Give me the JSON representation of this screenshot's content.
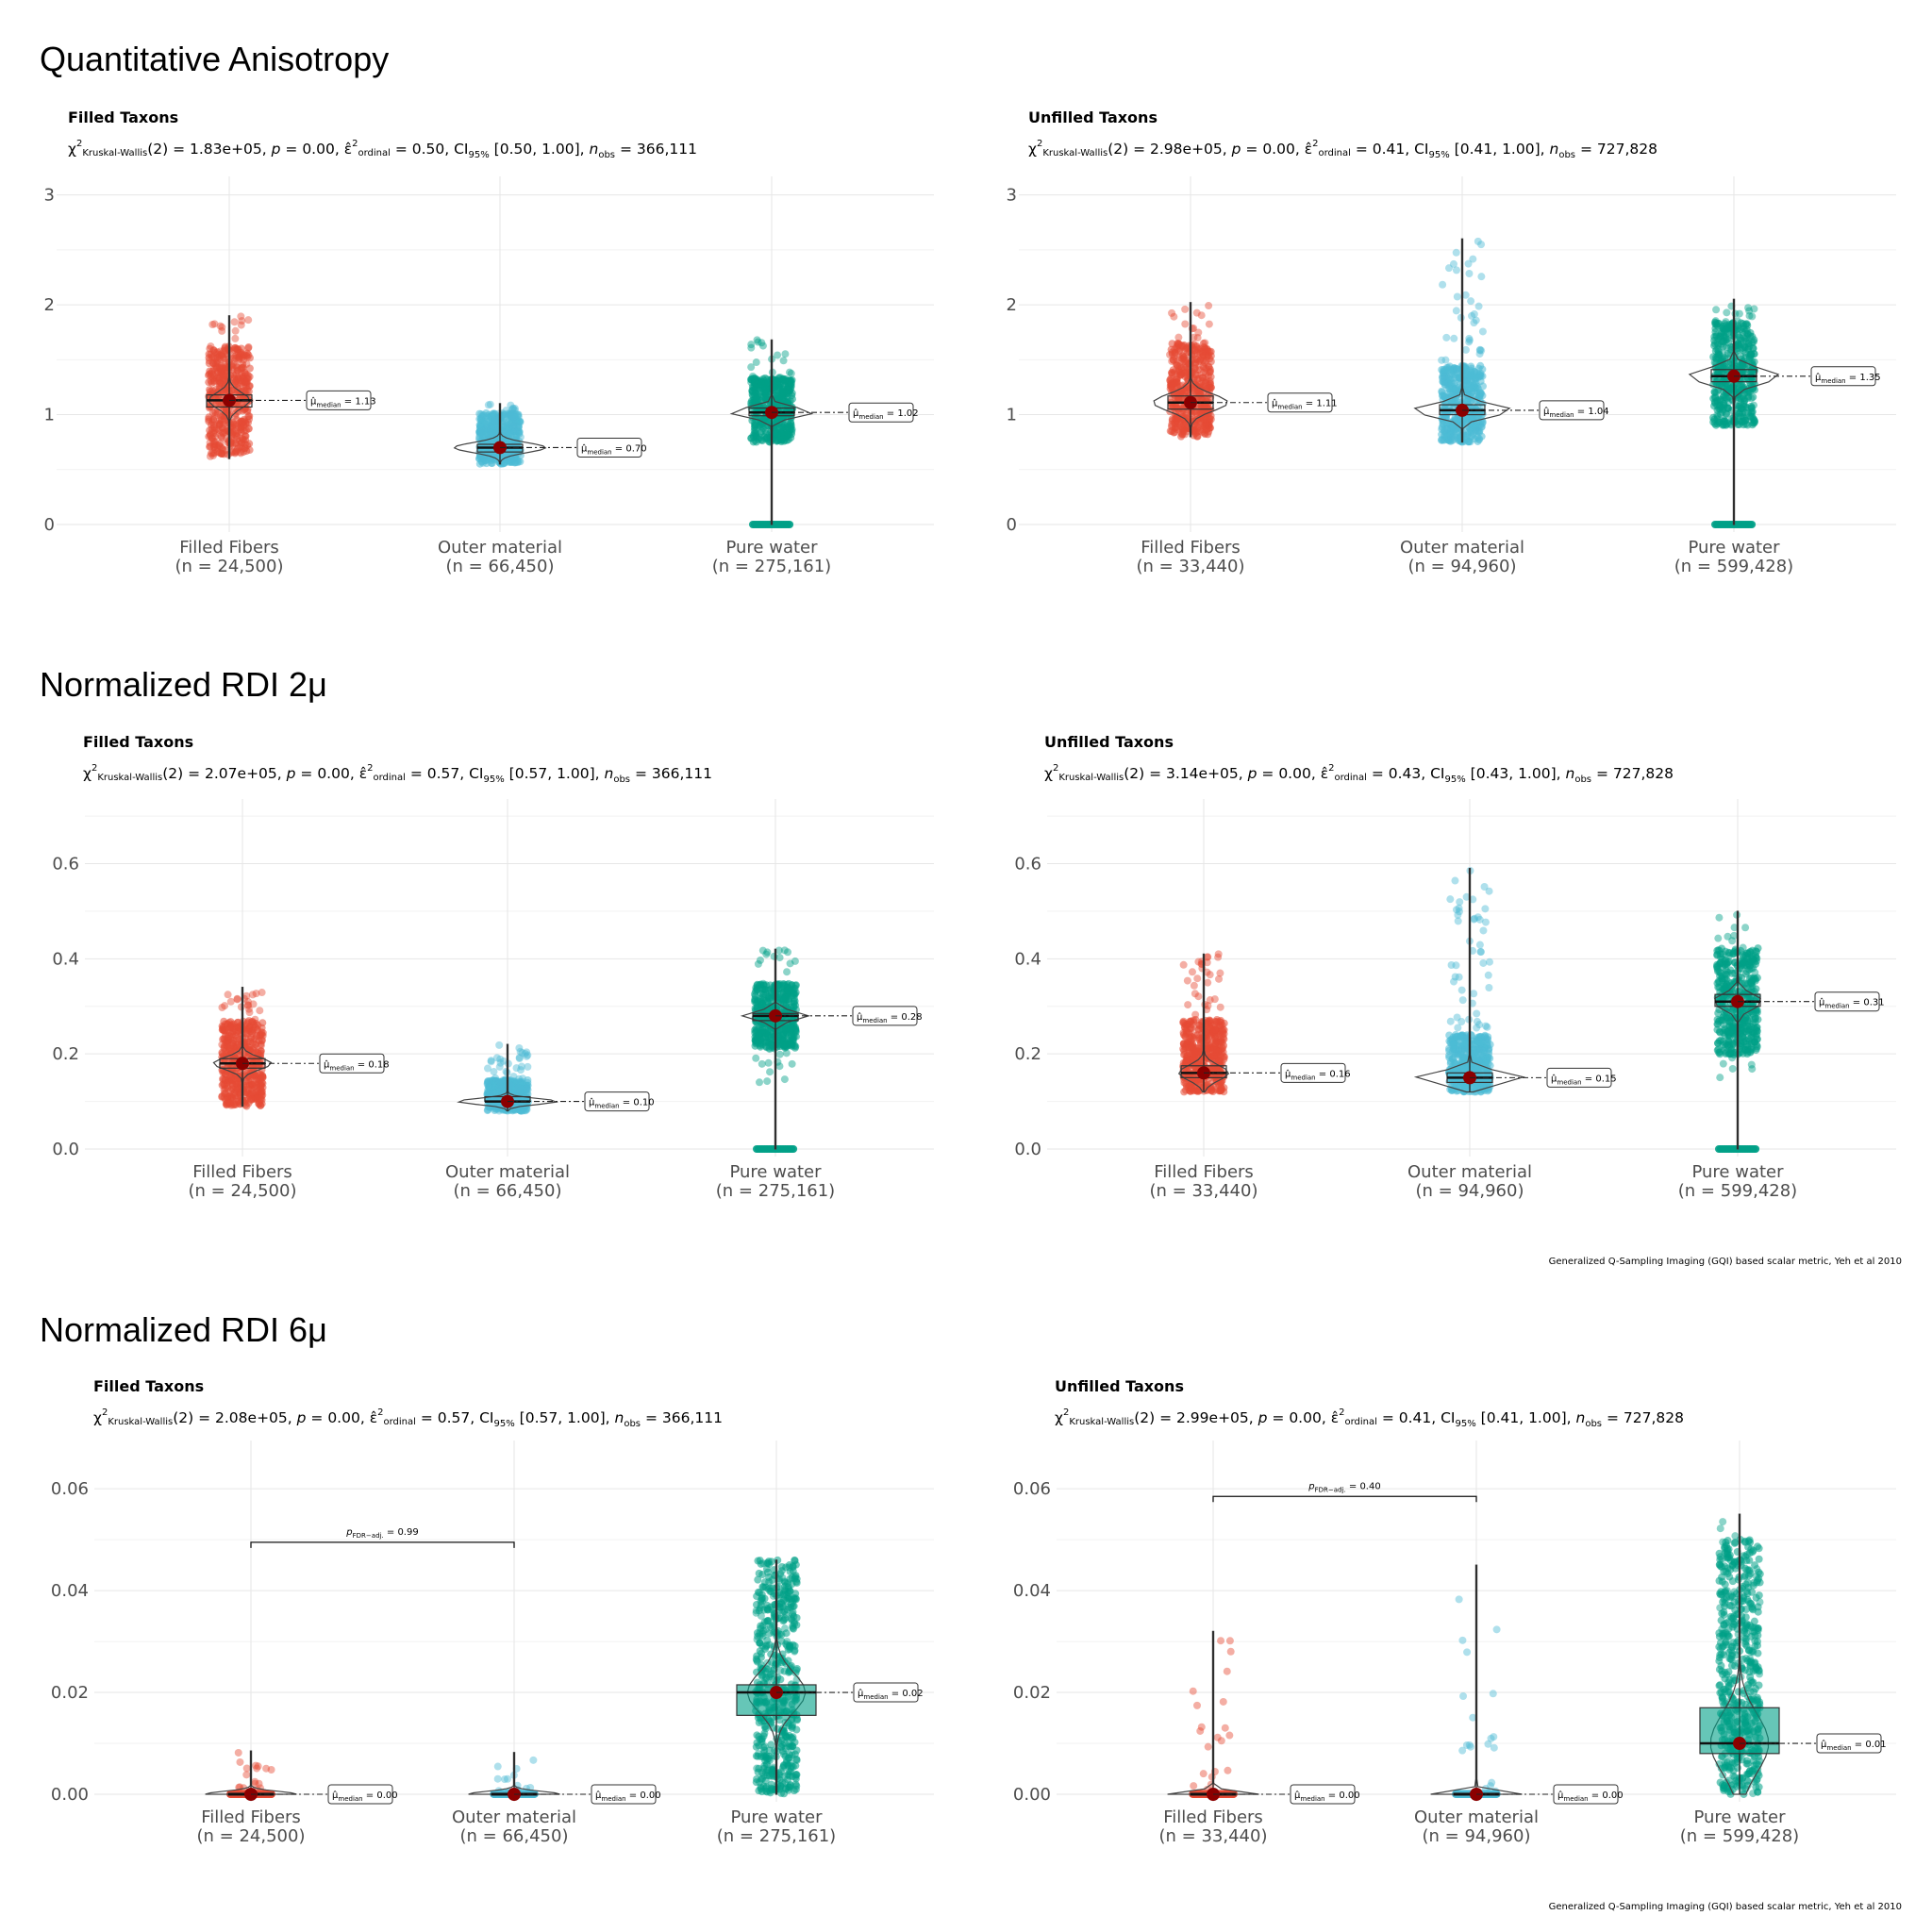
{
  "captions": {
    "caption_rdi2": "Generalized Q-Sampling Imaging (GQI) based scalar metric, Yeh et al 2010",
    "caption_rdi6": "Generalized Q-Sampling Imaging (GQI) based scalar metric, Yeh et al 2010"
  },
  "colors": {
    "Filled Fibers": "#E64B35",
    "Outer material": "#4DBBD5",
    "Pure water": "#00A087",
    "centrality": "#8B0000"
  },
  "chart_data": [
    {
      "type": "violin+box+jitter",
      "section": "Quantitative Anisotropy",
      "title": "Filled Taxons",
      "stat": {
        "chi2": "1.83e+05",
        "p": "0.00",
        "eps": "0.50",
        "ci": "[0.50, 1.00]",
        "nobs": "366,111"
      },
      "ylim": [
        0,
        3.1
      ],
      "yticks": [
        0,
        1,
        2,
        3
      ],
      "groups": [
        {
          "name": "Filled Fibers",
          "n_label": "(n = 24,500)",
          "median": 1.13,
          "median_label": "1.13",
          "min": 0.6,
          "max": 1.9,
          "q1": 1.07,
          "q3": 1.18,
          "width": 1.0,
          "out_zero": false
        },
        {
          "name": "Outer material",
          "n_label": "(n = 66,450)",
          "median": 0.7,
          "median_label": "0.70",
          "min": 0.55,
          "max": 1.1,
          "q1": 0.66,
          "q3": 0.73,
          "width": 2.2,
          "out_zero": false
        },
        {
          "name": "Pure water",
          "n_label": "(n = 275,161)",
          "median": 1.02,
          "median_label": "1.02",
          "min": 0.75,
          "max": 1.68,
          "q1": 0.99,
          "q3": 1.06,
          "width": 2.0,
          "out_zero": true
        }
      ],
      "pairwise": null
    },
    {
      "type": "violin+box+jitter",
      "section": "Quantitative Anisotropy",
      "title": "Unfilled Taxons",
      "stat": {
        "chi2": "2.98e+05",
        "p": "0.00",
        "eps": "0.41",
        "ci": "[0.41, 1.00]",
        "nobs": "727,828"
      },
      "ylim": [
        0,
        3.1
      ],
      "yticks": [
        0,
        1,
        2,
        3
      ],
      "groups": [
        {
          "name": "Filled Fibers",
          "n_label": "(n = 33,440)",
          "median": 1.11,
          "median_label": "1.11",
          "min": 0.8,
          "max": 2.02,
          "q1": 1.05,
          "q3": 1.17,
          "width": 1.8,
          "out_zero": false
        },
        {
          "name": "Outer material",
          "n_label": "(n = 94,960)",
          "median": 1.04,
          "median_label": "1.04",
          "min": 0.75,
          "max": 2.6,
          "q1": 1.0,
          "q3": 1.09,
          "width": 2.4,
          "out_zero": false
        },
        {
          "name": "Pure water",
          "n_label": "(n = 599,428)",
          "median": 1.35,
          "median_label": "1.35",
          "min": 0.9,
          "max": 2.05,
          "q1": 1.3,
          "q3": 1.41,
          "width": 2.2,
          "out_zero": true
        }
      ],
      "pairwise": null
    },
    {
      "type": "violin+box+jitter",
      "section": "Normalized RDI 2μ",
      "title": "Filled Taxons",
      "stat": {
        "chi2": "2.07e+05",
        "p": "0.00",
        "eps": "0.57",
        "ci": "[0.57, 1.00]",
        "nobs": "366,111"
      },
      "ylim": [
        0,
        0.72
      ],
      "yticks": [
        0.0,
        0.2,
        0.4,
        0.6
      ],
      "groups": [
        {
          "name": "Filled Fibers",
          "n_label": "(n = 24,500)",
          "median": 0.18,
          "median_label": "0.18",
          "min": 0.09,
          "max": 0.34,
          "q1": 0.17,
          "q3": 0.19,
          "width": 1.4,
          "out_zero": false
        },
        {
          "name": "Outer material",
          "n_label": "(n = 66,450)",
          "median": 0.1,
          "median_label": "0.10",
          "min": 0.08,
          "max": 0.22,
          "q1": 0.1,
          "q3": 0.11,
          "width": 2.4,
          "out_zero": false
        },
        {
          "name": "Pure water",
          "n_label": "(n = 275,161)",
          "median": 0.28,
          "median_label": "0.28",
          "min": 0.14,
          "max": 0.42,
          "q1": 0.27,
          "q3": 0.285,
          "width": 1.6,
          "out_zero": true
        }
      ],
      "pairwise": null
    },
    {
      "type": "violin+box+jitter",
      "section": "Normalized RDI 2μ",
      "title": "Unfilled Taxons",
      "stat": {
        "chi2": "3.14e+05",
        "p": "0.00",
        "eps": "0.43",
        "ci": "[0.43, 1.00]",
        "nobs": "727,828"
      },
      "ylim": [
        0,
        0.72
      ],
      "yticks": [
        0.0,
        0.2,
        0.4,
        0.6
      ],
      "groups": [
        {
          "name": "Filled Fibers",
          "n_label": "(n = 33,440)",
          "median": 0.16,
          "median_label": "0.16",
          "min": 0.12,
          "max": 0.41,
          "q1": 0.15,
          "q3": 0.175,
          "width": 1.2,
          "out_zero": false
        },
        {
          "name": "Outer material",
          "n_label": "(n = 94,960)",
          "median": 0.15,
          "median_label": "0.15",
          "min": 0.12,
          "max": 0.59,
          "q1": 0.14,
          "q3": 0.16,
          "width": 2.6,
          "out_zero": false
        },
        {
          "name": "Pure water",
          "n_label": "(n = 599,428)",
          "median": 0.31,
          "median_label": "0.31",
          "min": 0.15,
          "max": 0.5,
          "q1": 0.3,
          "q3": 0.325,
          "width": 1.2,
          "out_zero": true
        }
      ],
      "pairwise": null
    },
    {
      "type": "violin+box+jitter",
      "section": "Normalized RDI 6μ",
      "title": "Filled Taxons",
      "stat": {
        "chi2": "2.08e+05",
        "p": "0.00",
        "eps": "0.57",
        "ci": "[0.57, 1.00]",
        "nobs": "366,111"
      },
      "ylim": [
        0,
        0.068
      ],
      "yticks": [
        0.0,
        0.02,
        0.04,
        0.06
      ],
      "groups": [
        {
          "name": "Filled Fibers",
          "n_label": "(n = 24,500)",
          "median": 0.0,
          "median_label": "0.00",
          "min": 0.0,
          "max": 0.0085,
          "q1": 0.0,
          "q3": 0.0002,
          "width": 2.2,
          "out_zero": false
        },
        {
          "name": "Outer material",
          "n_label": "(n = 66,450)",
          "median": 0.0,
          "median_label": "0.00",
          "min": 0.0,
          "max": 0.0082,
          "q1": 0.0,
          "q3": 0.0002,
          "width": 2.2,
          "out_zero": false
        },
        {
          "name": "Pure water",
          "n_label": "(n = 275,161)",
          "median": 0.02,
          "median_label": "0.02",
          "min": 0.0,
          "max": 0.046,
          "q1": 0.0155,
          "q3": 0.0215,
          "width": 1.4,
          "out_zero": false
        }
      ],
      "pairwise": {
        "from": 0,
        "to": 1,
        "y": 0.0495,
        "label": "0.99"
      }
    },
    {
      "type": "violin+box+jitter",
      "section": "Normalized RDI 6μ",
      "title": "Unfilled Taxons",
      "stat": {
        "chi2": "2.99e+05",
        "p": "0.00",
        "eps": "0.41",
        "ci": "[0.41, 1.00]",
        "nobs": "727,828"
      },
      "ylim": [
        0,
        0.068
      ],
      "yticks": [
        0.0,
        0.02,
        0.04,
        0.06
      ],
      "groups": [
        {
          "name": "Filled Fibers",
          "n_label": "(n = 33,440)",
          "median": 0.0,
          "median_label": "0.00",
          "min": 0.0,
          "max": 0.032,
          "q1": 0.0,
          "q3": 0.0002,
          "width": 2.2,
          "out_zero": false
        },
        {
          "name": "Outer material",
          "n_label": "(n = 94,960)",
          "median": 0.0,
          "median_label": "0.00",
          "min": 0.0,
          "max": 0.045,
          "q1": 0.0,
          "q3": 0.0002,
          "width": 2.2,
          "out_zero": false
        },
        {
          "name": "Pure water",
          "n_label": "(n = 599,428)",
          "median": 0.01,
          "median_label": "0.01",
          "min": 0.0,
          "max": 0.055,
          "q1": 0.008,
          "q3": 0.017,
          "width": 1.4,
          "out_zero": false
        }
      ],
      "pairwise": {
        "from": 0,
        "to": 1,
        "y": 0.0585,
        "label": "0.40"
      }
    }
  ]
}
